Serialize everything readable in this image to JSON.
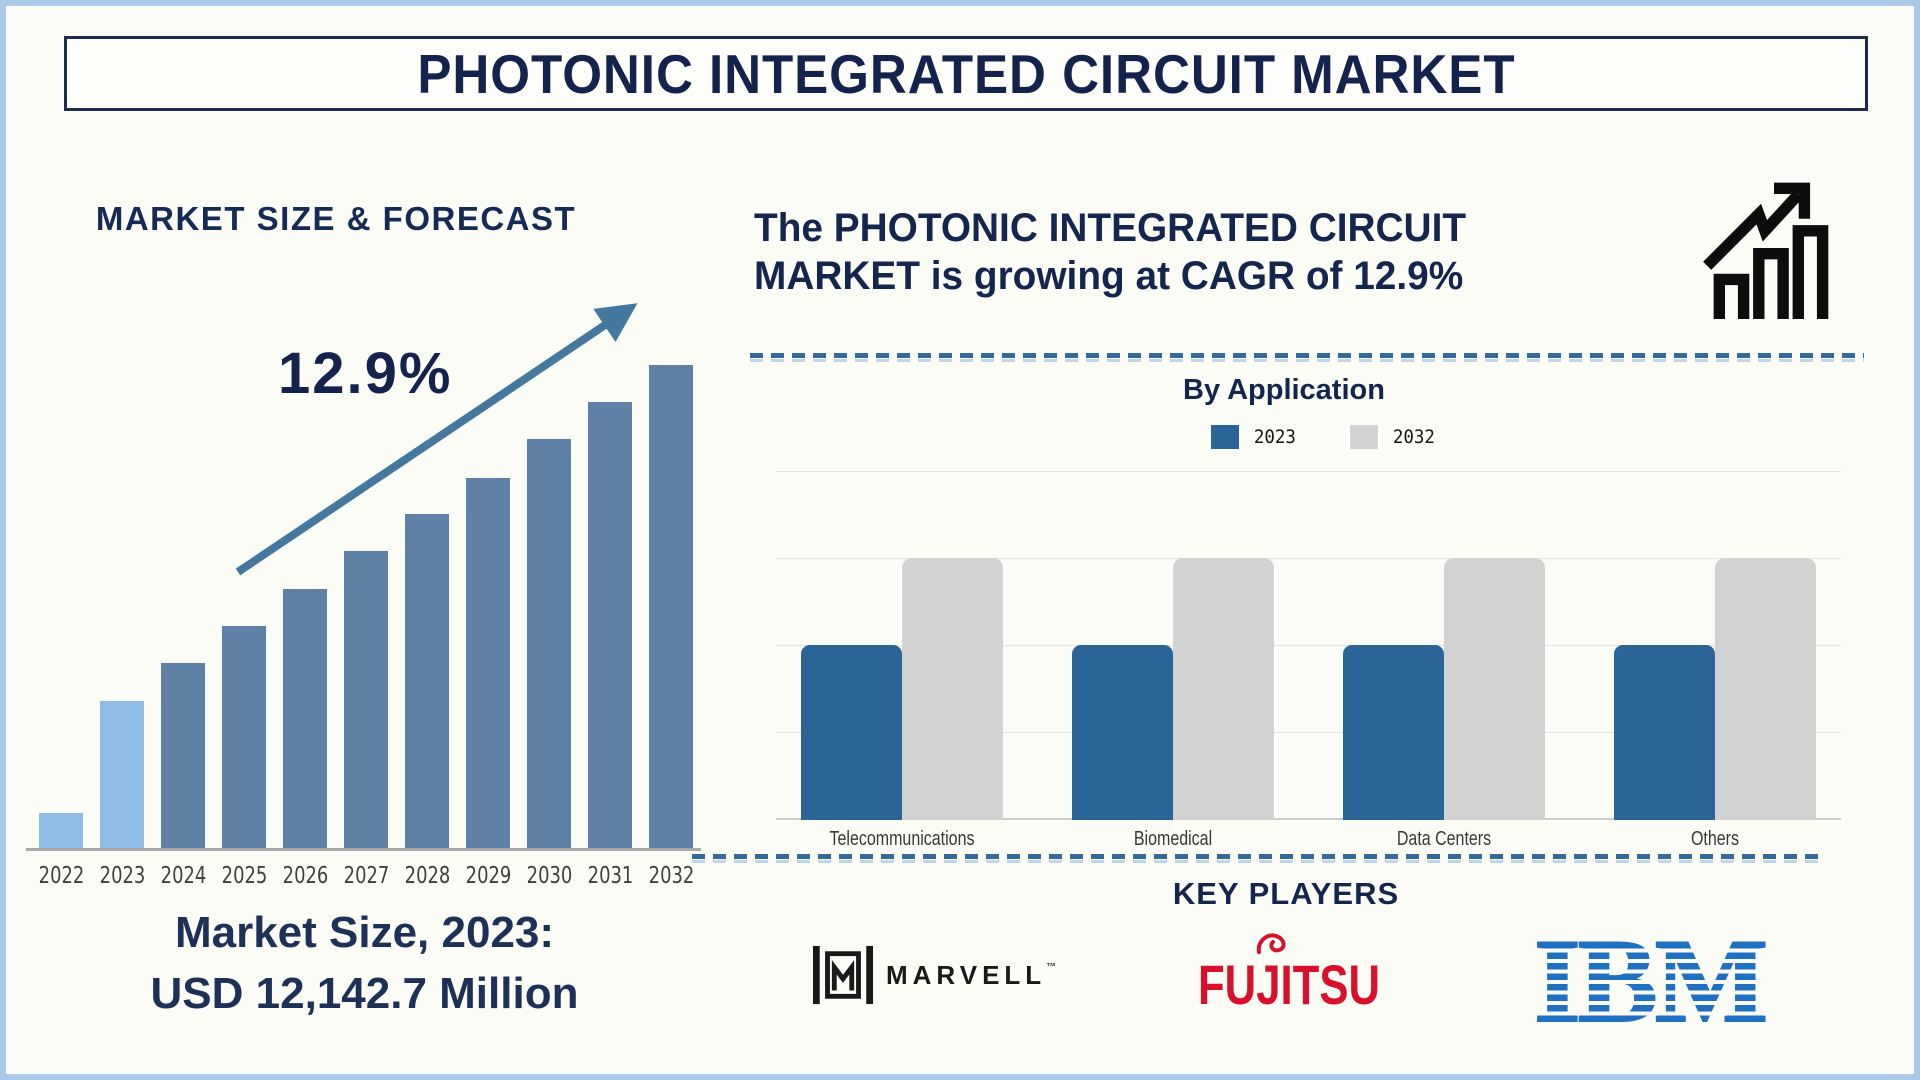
{
  "title": "PHOTONIC INTEGRATED CIRCUIT MARKET",
  "left": {
    "heading": "MARKET SIZE & FORECAST",
    "cagr": "12.9%",
    "caption_line1": "Market Size, 2023:",
    "caption_line2": "USD 12,142.7 Million"
  },
  "right": {
    "headline_line1": "The PHOTONIC INTEGRATED CIRCUIT",
    "headline_line2": "MARKET is growing at CAGR of 12.9%",
    "by_application_title": "By Application",
    "legend": [
      {
        "label": "2023",
        "color": "#2b6496"
      },
      {
        "label": "2032",
        "color": "#d2d2d2"
      }
    ],
    "key_players_heading": "KEY PLAYERS",
    "players": [
      {
        "name": "MARVELL",
        "tm": "™"
      },
      {
        "name": "FUJITSU"
      },
      {
        "name": "IBM"
      }
    ]
  },
  "chart_data": [
    {
      "type": "bar",
      "title": "MARKET SIZE & FORECAST",
      "categories": [
        "2022",
        "2023",
        "2024",
        "2025",
        "2026",
        "2027",
        "2028",
        "2029",
        "2030",
        "2031",
        "2032"
      ],
      "values_relative_pct": [
        7.4,
        30.6,
        38.4,
        46.1,
        53.7,
        61.6,
        69.2,
        76.7,
        84.7,
        92.4,
        100
      ],
      "bar_colors": [
        "#8fbce5",
        "#8fbce5",
        "#5e81a5",
        "#5e81a5",
        "#5e81a5",
        "#5e81a5",
        "#5e81a5",
        "#5e81a5",
        "#5e81a5",
        "#5e81a5",
        "#5e81a5"
      ],
      "ylabel": "",
      "xlabel": "",
      "yaxis_ticks": "none (pictorial market-growth bars)",
      "annotation": {
        "text": "12.9%",
        "meaning": "CAGR growth arrow over 2022-2032"
      },
      "caption": "Market Size, 2023: USD 12,142.7 Million"
    },
    {
      "type": "bar",
      "subtype": "grouped",
      "title": "By Application",
      "categories": [
        "Telecommunications",
        "Biomedical",
        "Data Centers",
        "Others"
      ],
      "series": [
        {
          "name": "2023",
          "color": "#2b6496",
          "values": [
            2,
            2,
            2,
            2
          ]
        },
        {
          "name": "2032",
          "color": "#d2d2d2",
          "values": [
            3,
            3,
            3,
            3
          ]
        }
      ],
      "ylim": [
        0,
        4
      ],
      "unit": "relative gridline units (y-axis unlabeled)",
      "grid": true,
      "legend_position": "top"
    }
  ],
  "colors": {
    "navy_text": "#14254e",
    "frame_border": "#a9c9e8",
    "light_blue_bar": "#8fbce5",
    "steel_blue_bar": "#5e81a5",
    "arrow_blue": "#44789f",
    "blue_2023": "#2b6496",
    "gray_2032": "#d2d2d2",
    "dashed_divider": "#34699c",
    "axis_gray": "#a8a8a8",
    "fujitsu_red": "#d8102c",
    "ibm_blue": "#1f70c1",
    "marvell_black": "#191919"
  }
}
